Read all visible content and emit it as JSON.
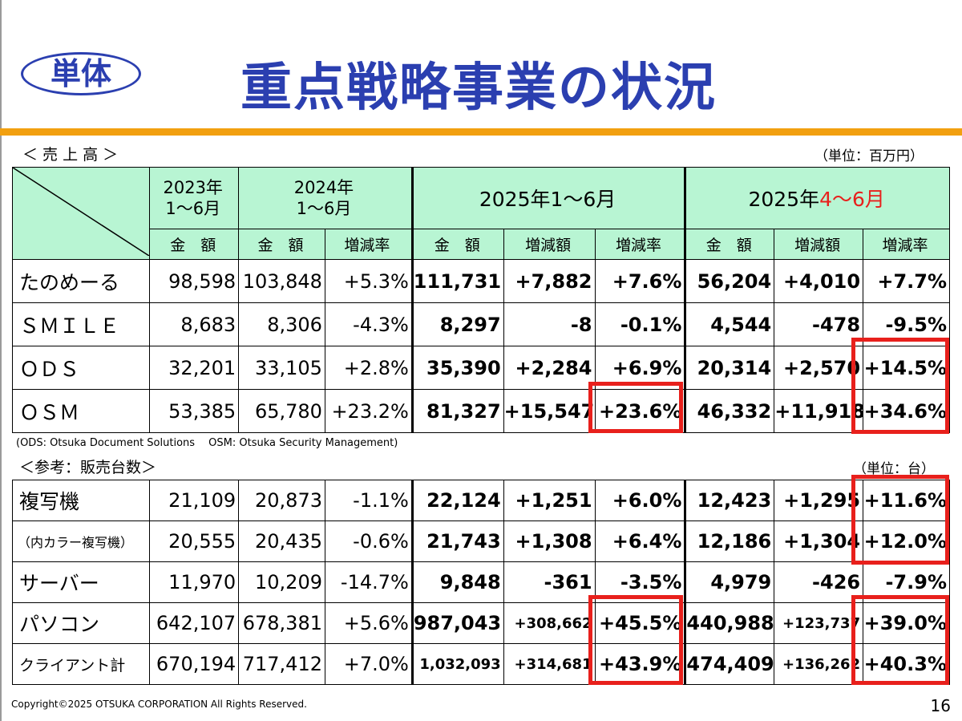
{
  "badge": "単体",
  "title": "重点戦略事業の状況",
  "sales": {
    "label": "＜ 売 上 高 ＞",
    "unit": "（単位：百万円）",
    "header": {
      "y2023_line1": "2023年",
      "y2023_line2": "1～6月",
      "y2024_line1": "2024年",
      "y2024_line2": "1～6月",
      "y2025h1": "2025年1～6月",
      "y2025q2_prefix": "2025年",
      "y2025q2_red": "4～6月",
      "amount": "金　額",
      "change_amount": "増減額",
      "change_rate": "増減率"
    },
    "rows": [
      {
        "name": "たのめーる",
        "v2023": "98,598",
        "v2024": "103,848",
        "r2024": "+5.3%",
        "v2025": "111,731",
        "d2025": "+7,882",
        "r2025": "+7.6%",
        "vq": "56,204",
        "dq": "+4,010",
        "rq": "+7.7%"
      },
      {
        "name": "ＳＭＩＬＥ",
        "v2023": "8,683",
        "v2024": "8,306",
        "r2024": "-4.3%",
        "v2025": "8,297",
        "d2025": "-8",
        "r2025": "-0.1%",
        "vq": "4,544",
        "dq": "-478",
        "rq": "-9.5%"
      },
      {
        "name": "ＯＤＳ",
        "v2023": "32,201",
        "v2024": "33,105",
        "r2024": "+2.8%",
        "v2025": "35,390",
        "d2025": "+2,284",
        "r2025": "+6.9%",
        "vq": "20,314",
        "dq": "+2,570",
        "rq": "+14.5%"
      },
      {
        "name": "ＯＳＭ",
        "v2023": "53,385",
        "v2024": "65,780",
        "r2024": "+23.2%",
        "v2025": "81,327",
        "d2025": "+15,547",
        "r2025": "+23.6%",
        "vq": "46,332",
        "dq": "+11,918",
        "rq": "+34.6%"
      }
    ],
    "note": "(ODS: Otsuka Document Solutions　 OSM: Otsuka Security Management)"
  },
  "units": {
    "label": "＜参考：販売台数＞",
    "unit": "（単位：台）",
    "rows": [
      {
        "name": "複写機",
        "v2023": "21,109",
        "v2024": "20,873",
        "r2024": "-1.1%",
        "v2025": "22,124",
        "d2025": "+1,251",
        "r2025": "+6.0%",
        "vq": "12,423",
        "dq": "+1,295",
        "rq": "+11.6%"
      },
      {
        "name": "（内カラー複写機）",
        "v2023": "20,555",
        "v2024": "20,435",
        "r2024": "-0.6%",
        "v2025": "21,743",
        "d2025": "+1,308",
        "r2025": "+6.4%",
        "vq": "12,186",
        "dq": "+1,304",
        "rq": "+12.0%"
      },
      {
        "name": "サーバー",
        "v2023": "11,970",
        "v2024": "10,209",
        "r2024": "-14.7%",
        "v2025": "9,848",
        "d2025": "-361",
        "r2025": "-3.5%",
        "vq": "4,979",
        "dq": "-426",
        "rq": "-7.9%"
      },
      {
        "name": "パソコン",
        "v2023": "642,107",
        "v2024": "678,381",
        "r2024": "+5.6%",
        "v2025": "987,043",
        "d2025": "+308,662",
        "r2025": "+45.5%",
        "vq": "440,988",
        "dq": "+123,737",
        "rq": "+39.0%"
      },
      {
        "name": "クライアント計",
        "v2023": "670,194",
        "v2024": "717,412",
        "r2024": "+7.0%",
        "v2025": "1,032,093",
        "d2025": "+314,681",
        "r2025": "+43.9%",
        "vq": "474,409",
        "dq": "+136,262",
        "rq": "+40.3%"
      }
    ]
  },
  "footer": "Copyright©2025 OTSUKA CORPORATION All Rights Reserved.",
  "page_number": "16",
  "colors": {
    "title": "#2b3fb0",
    "accent_bar": "#f2a010",
    "header_fill": "#b8f5d3",
    "highlight": "#e8201c"
  }
}
